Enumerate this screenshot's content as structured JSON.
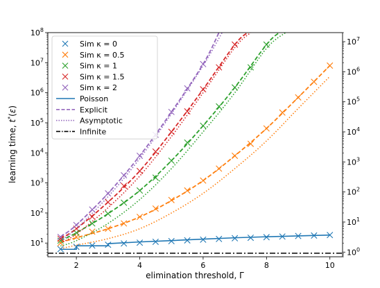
{
  "chart_data": {
    "type": "line",
    "xlabel": "elimination threshold, Γ",
    "ylabel": "learning time, t*(ε)",
    "xlim": [
      1.1,
      10.4
    ],
    "ylim": [
      3.5,
      100000000
    ],
    "y_scale": "log",
    "y2_scale": "log",
    "y2lim": [
      0.7,
      20000000
    ],
    "grid": false,
    "legend_position": "top-left",
    "x_ticks": [
      "2",
      "4",
      "6",
      "8",
      "10"
    ],
    "x_tick_values": [
      2,
      4,
      6,
      8,
      10
    ],
    "y_ticks": [
      "10^1",
      "10^2",
      "10^3",
      "10^4",
      "10^5",
      "10^6",
      "10^7",
      "10^8"
    ],
    "y_tick_values": [
      10,
      100,
      1000,
      10000,
      100000,
      1000000,
      10000000,
      100000000
    ],
    "y2_ticks": [
      "10^0",
      "10^1",
      "10^2",
      "10^3",
      "10^4",
      "10^5",
      "10^6",
      "10^7"
    ],
    "y2_tick_values": [
      1,
      10,
      100,
      1000,
      10000,
      100000,
      1000000,
      10000000
    ],
    "legend": {
      "items": [
        {
          "label": "Sim κ = 0",
          "marker": "x",
          "color": "#1f77b4"
        },
        {
          "label": "Sim κ = 0.5",
          "marker": "x",
          "color": "#ff7f0e"
        },
        {
          "label": "Sim κ = 1",
          "marker": "x",
          "color": "#2ca02c"
        },
        {
          "label": "Sim κ = 1.5",
          "marker": "x",
          "color": "#d62728"
        },
        {
          "label": "Sim κ = 2",
          "marker": "x",
          "color": "#9467bd"
        },
        {
          "label": "Poisson",
          "line": "solid",
          "color": "#1f77b4"
        },
        {
          "label": "Explicit",
          "line": "dashed",
          "color": "#9467bd"
        },
        {
          "label": "Asymptotic",
          "line": "dotted",
          "color": "#9467bd"
        },
        {
          "label": "Infinite",
          "line": "dashdot",
          "color": "#000000"
        }
      ]
    },
    "infinite_level": 4.6,
    "series": [
      {
        "kappa": 0,
        "color": "#1f77b4",
        "sim": {
          "x": [
            1.5,
            2,
            2.5,
            3,
            3.5,
            4,
            4.5,
            5,
            5.5,
            6,
            6.5,
            7,
            7.5,
            8,
            8.5,
            9,
            9.5,
            10
          ],
          "y": [
            6.3,
            7.5,
            8.3,
            8.8,
            9.7,
            10.3,
            11.0,
            11.6,
            12.3,
            13.0,
            13.7,
            14.5,
            15.0,
            15.7,
            16.5,
            17.2,
            17.8,
            18.5
          ]
        },
        "poisson": {
          "x": [
            1.5,
            2,
            2.01,
            3,
            3.01,
            4,
            5,
            6,
            7,
            8,
            9,
            10
          ],
          "y": [
            6.2,
            6.2,
            8.1,
            8.1,
            9.6,
            10.9,
            12.1,
            13.5,
            15.0,
            16.2,
            17.3,
            18.5
          ]
        }
      },
      {
        "kappa": 0.5,
        "color": "#ff7f0e",
        "sim": {
          "x": [
            1.5,
            2,
            2.5,
            3,
            3.5,
            4,
            4.5,
            5,
            5.5,
            6,
            6.5,
            7,
            7.5,
            8,
            8.5,
            9,
            9.5,
            10
          ],
          "y": [
            10,
            16,
            24,
            30,
            45,
            74,
            140,
            270,
            560,
            1200,
            3000,
            8000,
            20000,
            65000,
            220000,
            700000,
            2300000,
            8000000
          ]
        },
        "explicit": {
          "x": [
            1.5,
            2,
            3,
            4,
            5,
            6,
            7,
            8,
            9,
            10
          ],
          "y": [
            10.5,
            15,
            30,
            74,
            260,
            1200,
            8000,
            65000,
            700000,
            8000000
          ]
        },
        "asymptotic": {
          "x": [
            1.5,
            2,
            3,
            4,
            5,
            6,
            7,
            8,
            9,
            10
          ],
          "y": [
            6.5,
            8.5,
            14,
            30,
            100,
            450,
            3000,
            25000,
            300000,
            3500000
          ]
        }
      },
      {
        "kappa": 1,
        "color": "#2ca02c",
        "sim": {
          "x": [
            1.5,
            2,
            2.5,
            3,
            3.5,
            4,
            4.5,
            5,
            5.5,
            6,
            6.5,
            7,
            7.5,
            8
          ],
          "y": [
            12,
            22,
            45,
            95,
            220,
            560,
            1500,
            5500,
            22000,
            80000,
            350000,
            1500000,
            7000000,
            40000000
          ]
        },
        "explicit": {
          "x": [
            1.5,
            2,
            3,
            4,
            5,
            6,
            7,
            8,
            8.4
          ],
          "y": [
            12,
            22,
            95,
            560,
            5500,
            80000,
            1500000,
            40000000,
            100000000
          ]
        },
        "asymptotic": {
          "x": [
            1.5,
            2,
            3,
            4,
            5,
            6,
            7,
            8,
            8.6
          ],
          "y": [
            8,
            12,
            45,
            280,
            3000,
            50000,
            1000000,
            30000000,
            100000000
          ]
        }
      },
      {
        "kappa": 1.5,
        "color": "#d62728",
        "sim": {
          "x": [
            1.5,
            2,
            2.5,
            3,
            3.5,
            4,
            4.5,
            5,
            5.5,
            6,
            6.5,
            7
          ],
          "y": [
            14,
            30,
            75,
            230,
            800,
            2500,
            11000,
            50000,
            240000,
            1300000,
            7000000,
            40000000
          ]
        },
        "explicit": {
          "x": [
            1.5,
            2,
            3,
            4,
            5,
            6,
            7,
            7.4
          ],
          "y": [
            14,
            30,
            230,
            2500,
            50000,
            1300000,
            40000000,
            100000000
          ]
        },
        "asymptotic": {
          "x": [
            1.5,
            2,
            3,
            4,
            5,
            6,
            7,
            7.5
          ],
          "y": [
            10,
            20,
            150,
            1700,
            35000,
            1000000,
            32000000,
            100000000
          ]
        }
      },
      {
        "kappa": 2,
        "color": "#9467bd",
        "sim": {
          "x": [
            1.5,
            2,
            2.5,
            3,
            3.5,
            4,
            4.5,
            5,
            5.5,
            6
          ],
          "y": [
            16,
            40,
            130,
            450,
            1800,
            8000,
            40000,
            230000,
            1400000,
            9000000
          ]
        },
        "explicit": {
          "x": [
            1.5,
            2,
            3,
            4,
            5,
            6,
            6.5
          ],
          "y": [
            16,
            40,
            450,
            8000,
            230000,
            9000000,
            100000000
          ]
        },
        "asymptotic": {
          "x": [
            1.5,
            2,
            3,
            4,
            5,
            6,
            6.6
          ],
          "y": [
            12,
            30,
            350,
            6500,
            200000,
            8000000,
            100000000
          ]
        }
      }
    ]
  }
}
